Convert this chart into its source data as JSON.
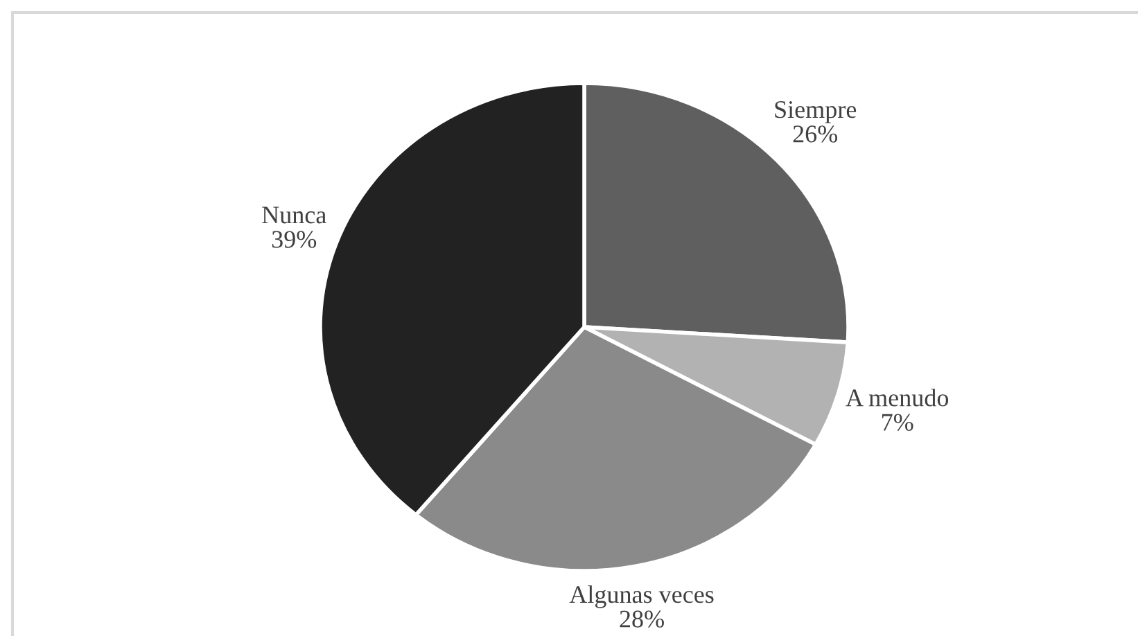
{
  "chart_data": {
    "type": "pie",
    "categories": [
      "Siempre",
      "A menudo",
      "Algunas veces",
      "Nunca"
    ],
    "values": [
      26,
      7,
      28,
      39
    ],
    "value_labels": [
      "26%",
      "7%",
      "28%",
      "39%"
    ],
    "colors": [
      "#5f5f5f",
      "#b2b2b2",
      "#8a8a8a",
      "#222222"
    ]
  }
}
